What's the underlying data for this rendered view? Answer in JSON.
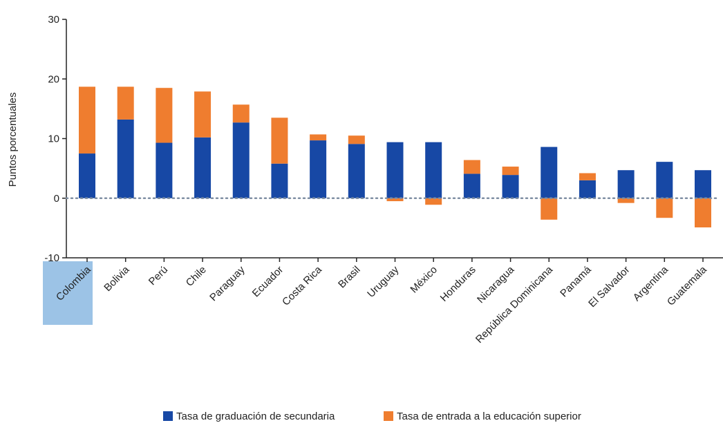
{
  "chart_data": {
    "type": "bar",
    "stacked": true,
    "title": "",
    "xlabel": "",
    "ylabel": "Puntos porcentuales",
    "ylim": [
      -10,
      30
    ],
    "yticks": [
      -10,
      0,
      10,
      20,
      30
    ],
    "zero_line": "dotted",
    "highlighted_category": "Colombia",
    "categories": [
      "Colombia",
      "Bolivia",
      "Perú",
      "Chile",
      "Paraguay",
      "Ecuador",
      "Costa Rica",
      "Brasil",
      "Uruguay",
      "México",
      "Honduras",
      "Nicaragua",
      "República Dominicana",
      "Panamá",
      "El Salvador",
      "Argentina",
      "Guatemala"
    ],
    "series": [
      {
        "name": "Tasa de graduación de secundaria",
        "color": "#1748a5",
        "values": [
          7.5,
          13.2,
          9.3,
          10.2,
          12.7,
          5.8,
          9.7,
          9.1,
          9.4,
          9.4,
          4.1,
          3.9,
          8.6,
          3.0,
          4.7,
          6.1,
          4.7
        ]
      },
      {
        "name": "Tasa de entrada a la educación superior",
        "color": "#ef7d2f",
        "values": [
          11.2,
          5.5,
          9.2,
          7.7,
          3.0,
          7.7,
          1.0,
          1.4,
          -0.5,
          -1.1,
          2.3,
          1.4,
          -3.6,
          1.2,
          -0.8,
          -3.3,
          -4.9
        ]
      }
    ],
    "legend_position": "bottom-center",
    "colors": {
      "highlight": "#9cc3e6",
      "zero_line": "#7f8fa3",
      "axis": "#222222"
    }
  }
}
